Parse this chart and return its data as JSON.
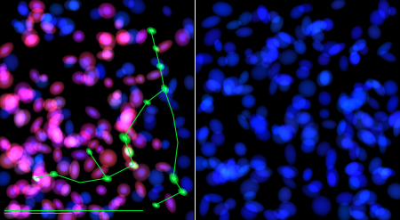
{
  "fig_width": 4.5,
  "fig_height": 2.47,
  "dpi": 100,
  "bg_color": "#000000",
  "divider_color": "#ffffff",
  "left_panel": {
    "seed": 42,
    "n_pink_cells": 120,
    "n_blue_cells": 60,
    "n_green_fibers": 15
  },
  "right_panel": {
    "seed": 77,
    "n_blue_cells": 180
  }
}
